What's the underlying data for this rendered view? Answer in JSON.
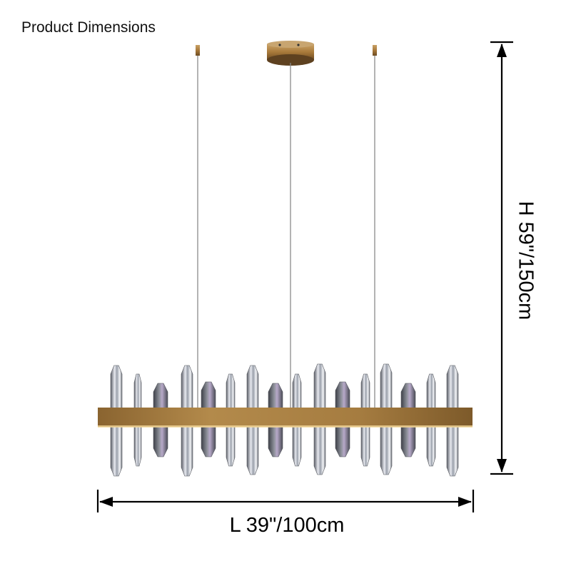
{
  "header": {
    "title": "Product Dimensions"
  },
  "dimensions": {
    "height": "H 59\"/150cm",
    "length": "L 39\"/100cm"
  }
}
